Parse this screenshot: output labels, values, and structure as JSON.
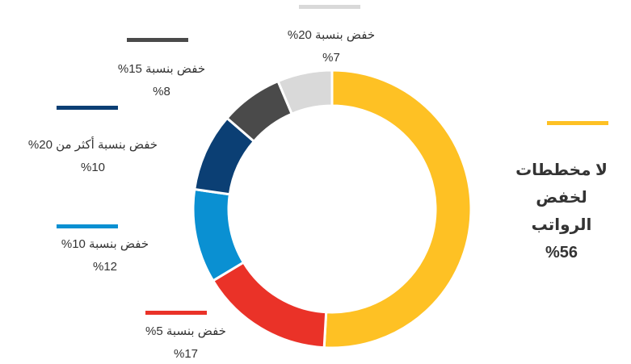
{
  "chart_data": {
    "type": "donut",
    "categories": [
      "لا مخططات لخفض الرواتب",
      "خفض بنسبة 5%",
      "خفض بنسبة 10%",
      "خفض بنسبة أكثر من 20%",
      "خفض بنسبة 15%",
      "خفض بنسبة 20%"
    ],
    "values": [
      56,
      17,
      12,
      10,
      8,
      7
    ],
    "value_labels": [
      "%56",
      "%17",
      "%12",
      "%10",
      "%8",
      "%7"
    ],
    "colors": [
      "#fec124",
      "#ea3228",
      "#0a90d2",
      "#0b3f74",
      "#4a4a4a",
      "#d9d9d9"
    ]
  }
}
